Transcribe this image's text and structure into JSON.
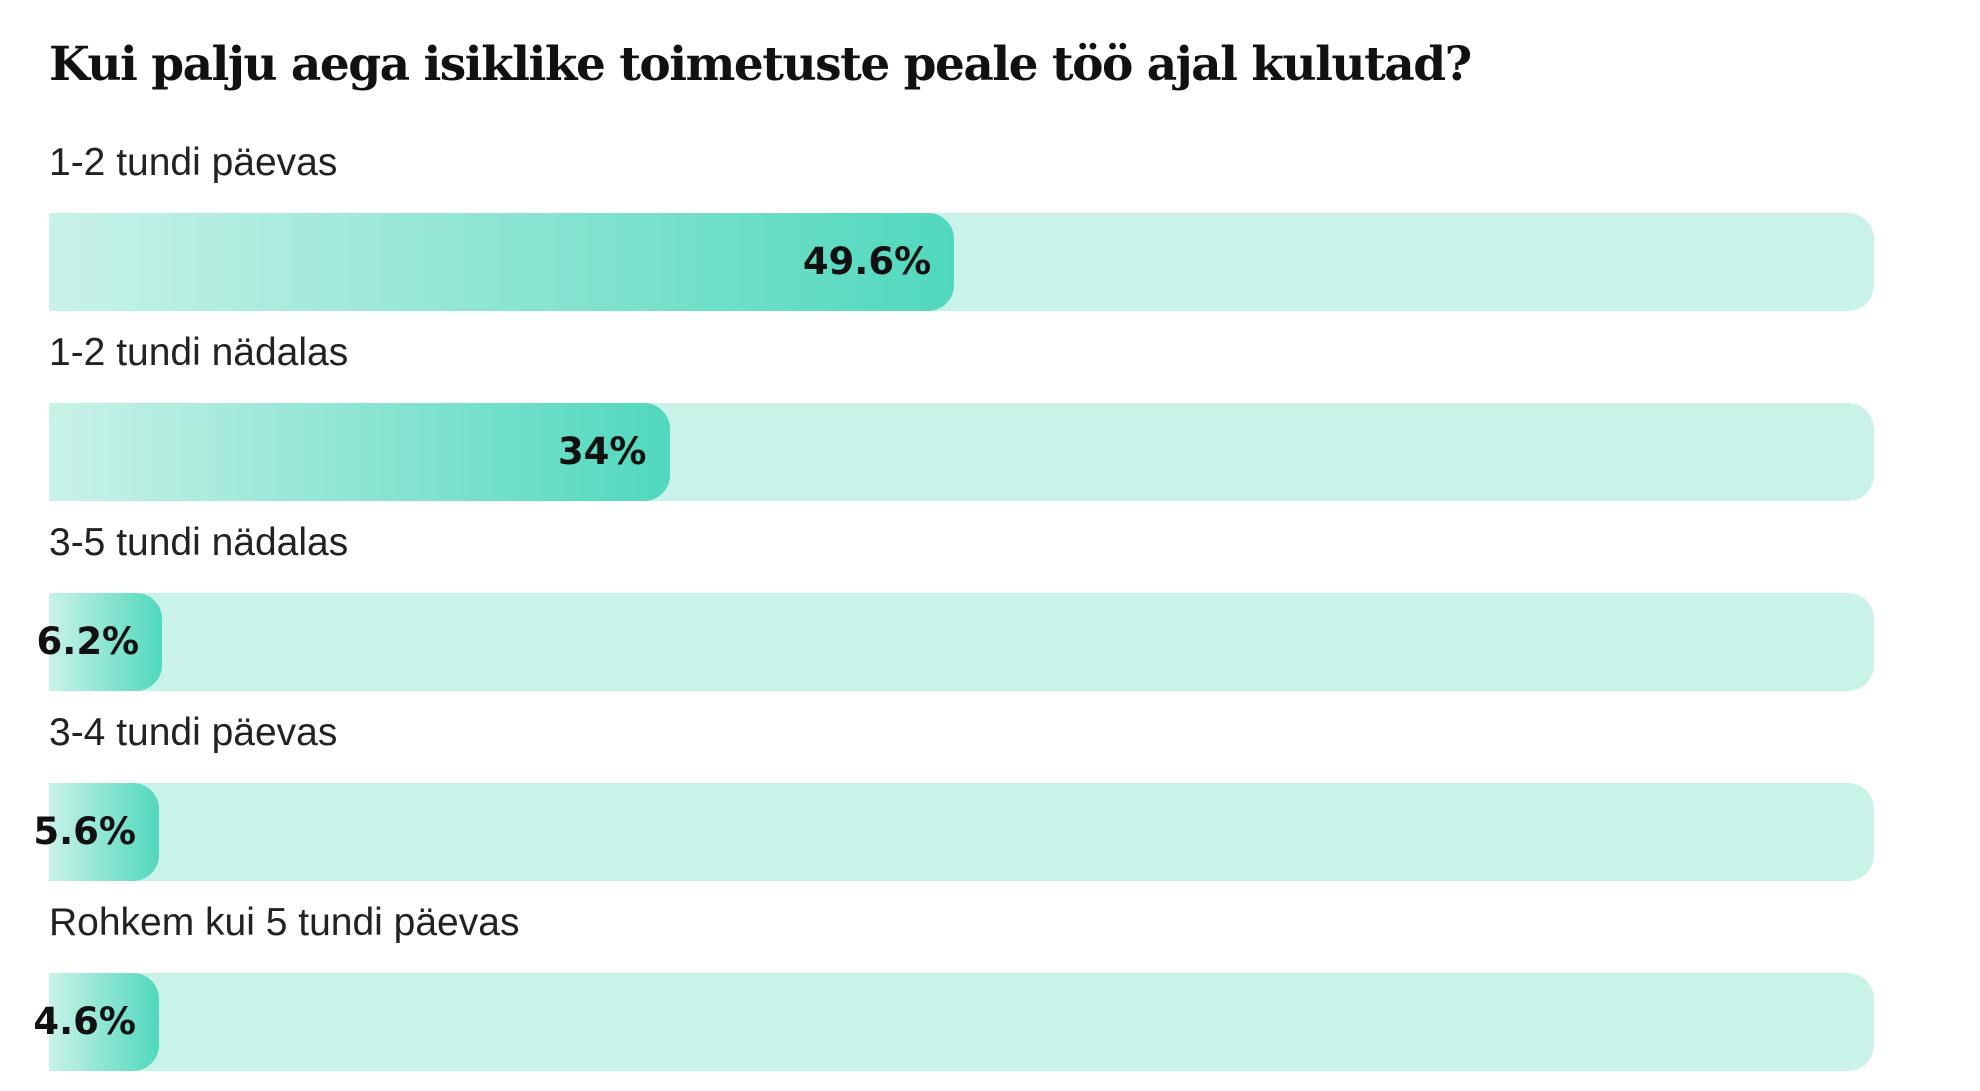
{
  "colors": {
    "track": "#c9f2e8",
    "fill_start": "#c9f2e8",
    "fill_end": "#50d8bd",
    "text": "#111111"
  },
  "chart_data": {
    "type": "bar",
    "orientation": "horizontal",
    "title": "Kui palju aega isiklike toimetuste peale töö ajal kulutad?",
    "unit": "%",
    "xlim": [
      0,
      100
    ],
    "categories": [
      "1-2 tundi päevas",
      "1-2 tundi nädalas",
      "3-5 tundi nädalas",
      "3-4 tundi päevas",
      "Rohkem kui 5 tundi päevas"
    ],
    "values": [
      49.6,
      34,
      6.2,
      5.6,
      4.6
    ],
    "value_labels": [
      "49.6%",
      "34%",
      "6.2%",
      "5.6%",
      "4.6%"
    ]
  }
}
